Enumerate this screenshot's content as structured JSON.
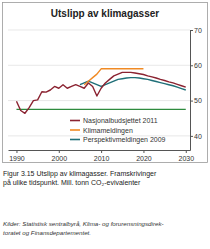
{
  "chart_data": {
    "type": "line",
    "title": "Utslipp av klimagasser",
    "caption": [
      "Figur 3.15  Utslipp av klimagasser. Framskrivinger",
      "på ulike tidspunkt. Mill. tonn CO₂-evivalenter"
    ],
    "source": [
      "Kilder: Statistisk sentralbyrå, Klima- og forurensningsdirek-",
      "toratet og Finansdepartementet."
    ],
    "x": [
      1990,
      1991,
      1992,
      1993,
      1994,
      1995,
      1996,
      1997,
      1998,
      1999,
      2000,
      2001,
      2002,
      2003,
      2004,
      2005,
      2006,
      2007,
      2008,
      2009,
      2010,
      2011,
      2012,
      2013,
      2014,
      2015,
      2016,
      2017,
      2018,
      2019,
      2020,
      2021,
      2022,
      2023,
      2024,
      2025,
      2026,
      2027,
      2028,
      2029,
      2030
    ],
    "xlim": [
      1988,
      2031
    ],
    "xticks": [
      1990,
      2000,
      2010,
      2020,
      2030
    ],
    "ylim": [
      36,
      70
    ],
    "yticks": [
      40,
      50,
      60,
      70
    ],
    "grid": true,
    "legend": "lower right",
    "series": [
      {
        "name": "Nasjonalbudsjettet 2011",
        "color": "#8b2331",
        "values": [
          49.8,
          47.2,
          46.4,
          48.0,
          50.0,
          50.2,
          52.5,
          52.4,
          53.0,
          54.0,
          53.5,
          54.5,
          53.5,
          54.0,
          54.5,
          54.0,
          53.5,
          55.0,
          54.0,
          51.3,
          53.5,
          55.0,
          56.0,
          57.0,
          57.5,
          58.0,
          58.0,
          58.0,
          57.8,
          57.6,
          57.4,
          57.0,
          56.7,
          56.4,
          56.0,
          55.7,
          55.3,
          55.0,
          54.6,
          54.2,
          53.8
        ]
      },
      {
        "name": "Klimameldingen",
        "color": "#f08a24",
        "values": [
          null,
          null,
          null,
          null,
          null,
          null,
          null,
          null,
          null,
          null,
          null,
          null,
          null,
          null,
          null,
          null,
          54.5,
          55.5,
          56.5,
          57.5,
          59.0,
          59.0,
          59.0,
          59.0,
          59.0,
          59.0,
          59.0,
          59.0,
          59.0,
          59.0,
          59.0,
          null,
          null,
          null,
          null,
          null,
          null,
          null,
          null,
          null,
          null
        ]
      },
      {
        "name": "Perspektivmeldingen 2009",
        "color": "#1f6f78",
        "values": [
          null,
          null,
          null,
          null,
          null,
          null,
          null,
          null,
          null,
          null,
          null,
          null,
          null,
          null,
          null,
          54.5,
          55.0,
          55.5,
          55.0,
          54.5,
          54.0,
          54.5,
          55.0,
          55.5,
          56.0,
          56.2,
          56.4,
          56.5,
          56.5,
          56.4,
          56.2,
          56.0,
          55.7,
          55.4,
          55.1,
          54.8,
          54.5,
          54.2,
          53.8,
          53.4,
          53.0
        ]
      },
      {
        "color": "#2e8b3e",
        "values": [
          47.5,
          47.5,
          47.5,
          47.5,
          47.5,
          47.5,
          47.5,
          47.5,
          47.5,
          47.5,
          47.5,
          47.5,
          47.5,
          47.5,
          47.5,
          47.5,
          47.5,
          47.5,
          47.5,
          47.5,
          47.5,
          47.5,
          47.5,
          47.5,
          47.5,
          47.5,
          47.5,
          47.5,
          47.5,
          47.5,
          47.5,
          47.5,
          47.5,
          47.5,
          47.5,
          47.5,
          47.5,
          47.5,
          47.5,
          47.5,
          47.5
        ]
      }
    ]
  }
}
